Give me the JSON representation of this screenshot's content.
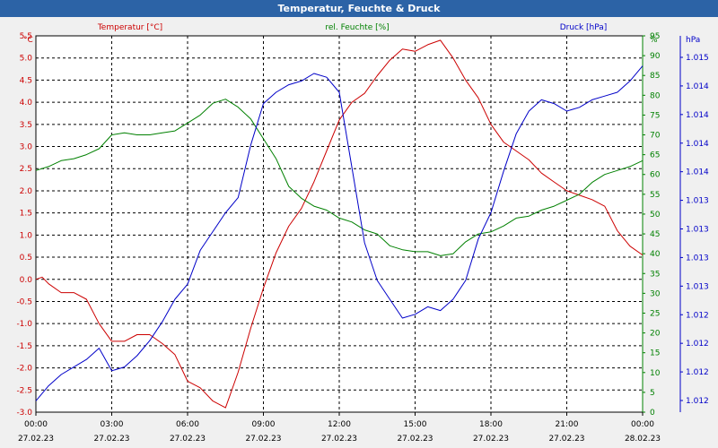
{
  "window": {
    "title": "Temperatur, Feuchte & Druck"
  },
  "colors": {
    "temperature": "#cc0000",
    "humidity": "#008000",
    "pressure": "#0000c8",
    "grid": "#000000",
    "plot_bg": "#ffffff",
    "title_bg": "#2c63a6"
  },
  "chart_data": {
    "type": "line",
    "title": "Temperatur, Feuchte & Druck",
    "grid": true,
    "x_ticks": [
      {
        "time": "00:00",
        "date": "27.02.23"
      },
      {
        "time": "03:00",
        "date": "27.02.23"
      },
      {
        "time": "06:00",
        "date": "27.02.23"
      },
      {
        "time": "09:00",
        "date": "27.02.23"
      },
      {
        "time": "12:00",
        "date": "27.02.23"
      },
      {
        "time": "15:00",
        "date": "27.02.23"
      },
      {
        "time": "18:00",
        "date": "27.02.23"
      },
      {
        "time": "21:00",
        "date": "27.02.23"
      },
      {
        "time": "00:00",
        "date": "28.02.23"
      }
    ],
    "x_range_hours": [
      0,
      24
    ],
    "axes": {
      "temperature": {
        "label": "Temperatur [°C]",
        "unit": "°C",
        "ylim": [
          -3.0,
          5.5
        ],
        "ticks": [
          "5.5",
          "5.0",
          "4.5",
          "4.0",
          "3.5",
          "3.0",
          "2.5",
          "2.0",
          "1.5",
          "1.0",
          "0.5",
          "0.0",
          "-0.5",
          "-1.0",
          "-1.5",
          "-2.0",
          "-2.5",
          "-3.0"
        ]
      },
      "humidity": {
        "label": "rel. Feuchte [%]",
        "unit": "%",
        "ylim": [
          0,
          95
        ],
        "ticks": [
          "95",
          "90",
          "85",
          "80",
          "75",
          "70",
          "65",
          "60",
          "55",
          "50",
          "45",
          "40",
          "35",
          "30",
          "25",
          "20",
          "15",
          "10",
          "5",
          "0"
        ]
      },
      "pressure": {
        "label": "Druck [hPa]",
        "unit": "hPa",
        "ticks": [
          "1.015",
          "1.014",
          "1.014",
          "1.014",
          "1.014",
          "1.013",
          "1.013",
          "1.013",
          "1.013",
          "1.012",
          "1.012",
          "1.012",
          "1.012"
        ]
      }
    },
    "series": [
      {
        "name": "Temperatur [°C]",
        "axis": "temperature",
        "x": [
          0,
          0.25,
          0.5,
          1,
          1.5,
          2,
          2.5,
          3,
          3.5,
          4,
          4.5,
          5,
          5.5,
          6,
          6.5,
          7,
          7.5,
          8,
          8.5,
          9,
          9.5,
          10,
          10.5,
          11,
          11.5,
          12,
          12.5,
          13,
          13.5,
          14,
          14.5,
          15,
          15.5,
          16,
          16.5,
          17,
          17.5,
          18,
          18.5,
          19,
          19.5,
          20,
          20.5,
          21,
          21.5,
          22,
          22.5,
          23,
          23.5,
          24
        ],
        "values": [
          0.0,
          0.05,
          -0.1,
          -0.3,
          -0.3,
          -0.45,
          -1.0,
          -1.4,
          -1.4,
          -1.25,
          -1.25,
          -1.45,
          -1.7,
          -2.3,
          -2.45,
          -2.75,
          -2.9,
          -2.1,
          -1.1,
          -0.2,
          0.6,
          1.2,
          1.6,
          2.2,
          2.9,
          3.6,
          4.0,
          4.2,
          4.6,
          4.95,
          5.2,
          5.15,
          5.3,
          5.4,
          5.0,
          4.5,
          4.1,
          3.5,
          3.1,
          2.9,
          2.7,
          2.4,
          2.2,
          2.0,
          1.9,
          1.8,
          1.65,
          1.1,
          0.75,
          0.55
        ]
      },
      {
        "name": "rel. Feuchte [%]",
        "axis": "humidity",
        "x": [
          0,
          0.5,
          1,
          1.5,
          2,
          2.5,
          3,
          3.5,
          4,
          4.5,
          5,
          5.5,
          6,
          6.5,
          7,
          7.5,
          8,
          8.5,
          9,
          9.5,
          10,
          10.5,
          11,
          11.5,
          12,
          12.5,
          13,
          13.5,
          14,
          14.5,
          15,
          15.5,
          16,
          16.5,
          17,
          17.5,
          18,
          18.5,
          19,
          19.5,
          20,
          20.5,
          21,
          21.5,
          22,
          22.5,
          23,
          23.5,
          24
        ],
        "values": [
          61,
          62,
          63.5,
          64,
          65,
          66.5,
          70,
          70.5,
          70,
          70,
          70.5,
          71,
          73,
          75,
          78,
          79,
          77,
          74,
          69,
          64,
          57,
          54,
          52,
          51,
          49,
          48,
          46,
          45,
          42,
          41,
          40.5,
          40.5,
          39.5,
          40,
          43,
          45,
          45.5,
          47,
          49,
          49.5,
          51,
          52,
          53.5,
          55,
          58,
          60,
          61,
          62,
          63.5
        ]
      },
      {
        "name": "Druck [hPa]",
        "axis": "pressure",
        "x": [
          0,
          0.5,
          1,
          1.5,
          2,
          2.5,
          3,
          3.5,
          4,
          4.5,
          5,
          5.5,
          6,
          6.5,
          7,
          7.5,
          8,
          8.5,
          9,
          9.5,
          10,
          10.5,
          11,
          11.5,
          12,
          12.5,
          13,
          13.5,
          14,
          14.5,
          15,
          15.5,
          16,
          16.5,
          17,
          17.5,
          18,
          18.5,
          19,
          19.5,
          20,
          20.5,
          21,
          21.5,
          22,
          22.5,
          23,
          23.5,
          24
        ],
        "values": [
          3,
          7,
          10,
          12,
          14,
          17,
          11,
          12,
          15,
          19,
          24,
          30,
          34,
          43,
          48,
          53,
          57,
          71,
          82,
          85,
          87,
          88,
          90,
          89,
          85,
          65,
          45,
          35,
          30,
          25,
          26,
          28,
          27,
          30,
          35,
          46,
          53,
          64,
          74,
          80,
          83,
          82,
          80,
          81,
          83,
          84,
          85,
          88,
          92
        ]
      }
    ]
  }
}
